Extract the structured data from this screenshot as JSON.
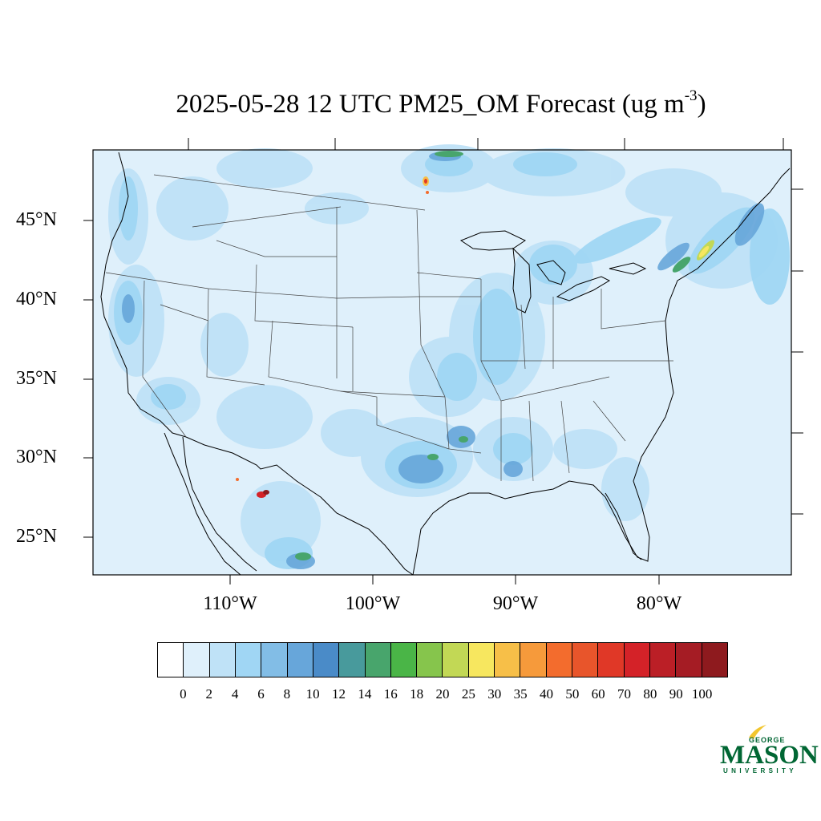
{
  "title": {
    "main": "2025-05-28 12 UTC PM25_OM Forecast (ug m",
    "superscript": "-3",
    "close": ")"
  },
  "map": {
    "lat_labels": [
      "45°N",
      "40°N",
      "35°N",
      "30°N",
      "25°N"
    ],
    "lon_labels": [
      "110°W",
      "100°W",
      "90°W",
      "80°W"
    ],
    "background_color": "#dff0fb",
    "boundary_color": "#000000"
  },
  "colorbar": {
    "colors": [
      "#ffffff",
      "#dff0fb",
      "#bfe2f7",
      "#a0d6f4",
      "#82bde6",
      "#67a6da",
      "#4a8bc8",
      "#489a9c",
      "#48a56c",
      "#4ab547",
      "#86c54c",
      "#c2d855",
      "#f7e75f",
      "#f7bf48",
      "#f69a3b",
      "#f36c2d",
      "#e8552b",
      "#e03827",
      "#d42228",
      "#bb1f26",
      "#a51c24",
      "#8e1a1e"
    ],
    "labels": [
      "0",
      "2",
      "4",
      "6",
      "8",
      "10",
      "12",
      "14",
      "16",
      "18",
      "20",
      "25",
      "30",
      "35",
      "40",
      "50",
      "60",
      "70",
      "80",
      "90",
      "100"
    ]
  },
  "logo": {
    "line1": "GEORGE",
    "line2": "MASON",
    "line3": "UNIVERSITY",
    "color": "#006633",
    "accent": "#f2c62f"
  }
}
